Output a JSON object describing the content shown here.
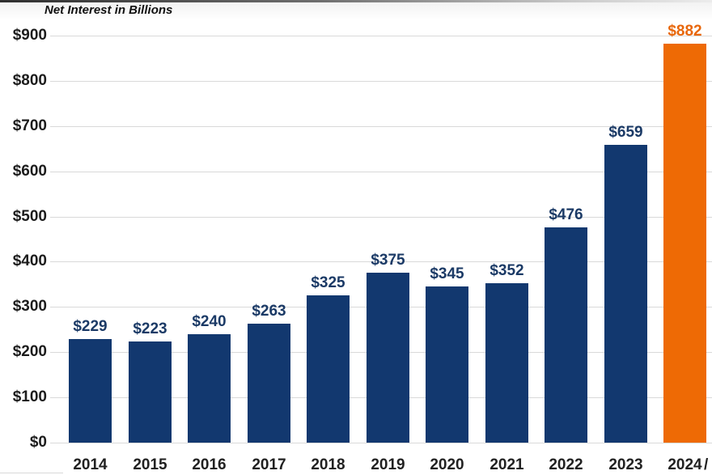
{
  "title": "Net Interest in Billions",
  "chart_data": {
    "type": "bar",
    "title": "Net Interest in Billions",
    "categories": [
      "2014",
      "2015",
      "2016",
      "2017",
      "2018",
      "2019",
      "2020",
      "2021",
      "2022",
      "2023",
      "2024"
    ],
    "values": [
      229,
      223,
      240,
      263,
      325,
      375,
      345,
      352,
      476,
      659,
      882
    ],
    "value_labels": [
      "$229",
      "$223",
      "$240",
      "$263",
      "$325",
      "$375",
      "$345",
      "$352",
      "$476",
      "$659",
      "$882"
    ],
    "ytick_labels": [
      "$0",
      "$100",
      "$200",
      "$300",
      "$400",
      "$500",
      "$600",
      "$700",
      "$800",
      "$900"
    ],
    "ytick_step": 100,
    "ylim": [
      0,
      900
    ],
    "xlabel": "",
    "ylabel": "Net Interest in Billions",
    "grid": true,
    "legend": "none",
    "bar_color": "#12386F",
    "highlight_index": 10,
    "highlight_color": "#EE6A05",
    "label_color": "#1B3A66",
    "highlight_label_color": "#E8670B",
    "gridline_color": "#d9d9d9",
    "last_category_footnote_mark": "/"
  }
}
